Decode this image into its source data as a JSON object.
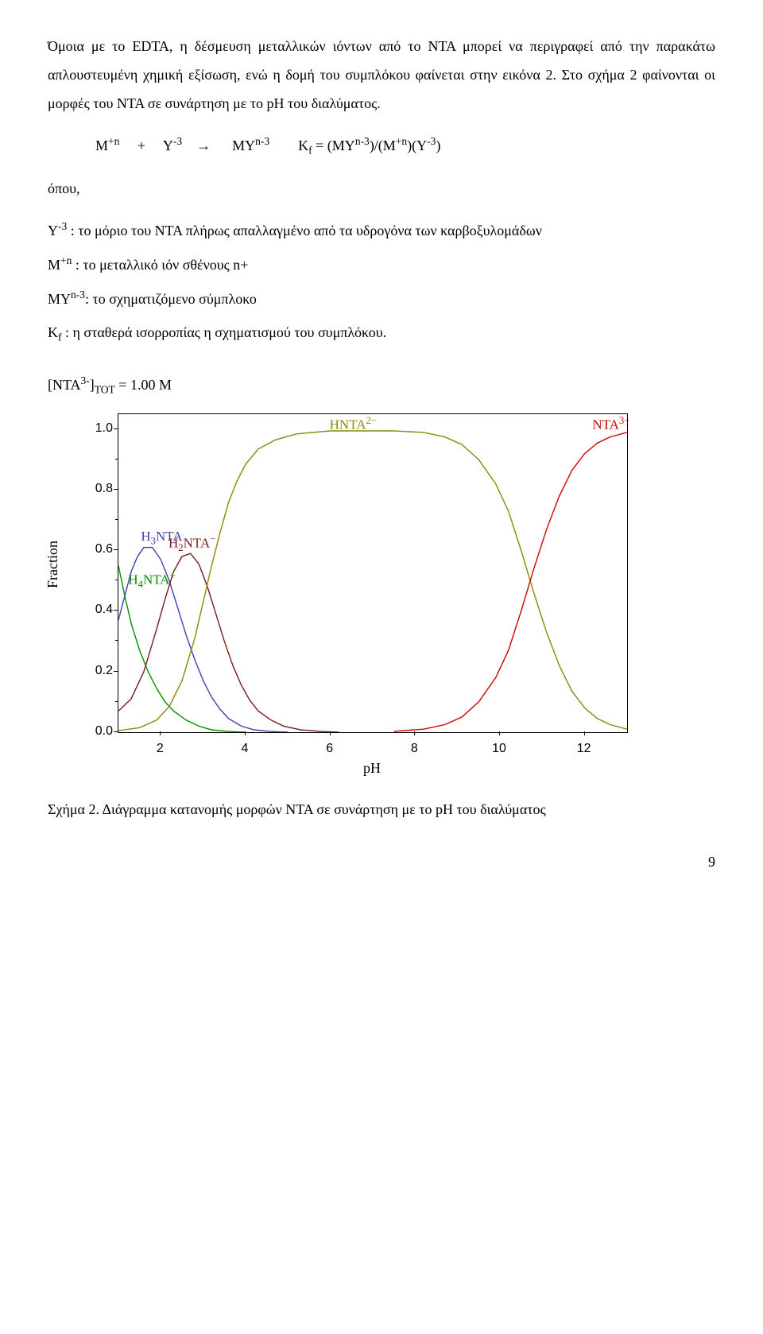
{
  "para1": "Όμοια με το EDTA, η δέσμευση μεταλλικών ιόντων από το NTA μπορεί να περιγραφεί από την παρακάτω απλουστευμένη χημική εξίσωση, ενώ η δομή του συμπλόκου φαίνεται στην εικόνα 2. Στο σχήμα 2 φαίνονται οι μορφές του NTA σε συνάρτηση με το pH του διαλύματος.",
  "eq_where": "όπου,",
  "eq": {
    "M_label": "M",
    "M_sup": "+n",
    "plus": "+",
    "Y_label": "Y",
    "Y_sup": "-3",
    "arrow": "→",
    "MY_label": "MY",
    "MY_sup": "n-3",
    "Kf": "K",
    "Kf_sub": "f",
    "eqsign": " = (MY",
    "rhs_a_sup": "n-3",
    "rhs_b": ")/(M",
    "rhs_b_sup": "+n",
    "rhs_c": ")(Y",
    "rhs_c_sup": "-3",
    "rhs_end": ")"
  },
  "defs": {
    "d1a": "Y",
    "d1sup": "-3",
    "d1b": " : το μόριο του NTA πλήρως απαλλαγμένο από τα υδρογόνα των καρβοξυλομάδων",
    "d2a": "M",
    "d2sup": "+n",
    "d2b": " : το μεταλλικό ιόν σθένους n+",
    "d3a": "MY",
    "d3sup": "n-3",
    "d3b": ": το σχηματιζόμενο σύμπλοκο",
    "d4a": "K",
    "d4sub": "f",
    "d4b": " :  η σταθερά ισορροπίας η σχηματισμού του συμπλόκου."
  },
  "chart": {
    "ntatot_label_a": "[NTA",
    "ntatot_sup": "3-",
    "ntatot_label_b": "]",
    "ntatot_sub": "TOT",
    "ntatot_eq": " =    1.00 M",
    "ylabel": "Fraction",
    "xlabel": "pH",
    "y_ticks": [
      {
        "v": 0.0,
        "label": "0.0"
      },
      {
        "v": 0.2,
        "label": "0.2"
      },
      {
        "v": 0.4,
        "label": "0.4"
      },
      {
        "v": 0.6,
        "label": "0.6"
      },
      {
        "v": 0.8,
        "label": "0.8"
      },
      {
        "v": 1.0,
        "label": "1.0"
      }
    ],
    "x_ticks": [
      {
        "v": 2,
        "label": "2"
      },
      {
        "v": 4,
        "label": "4"
      },
      {
        "v": 6,
        "label": "6"
      },
      {
        "v": 8,
        "label": "8"
      },
      {
        "v": 10,
        "label": "10"
      },
      {
        "v": 12,
        "label": "12"
      }
    ],
    "x_range": [
      1,
      13
    ],
    "y_range": [
      0,
      1.05
    ],
    "series": [
      {
        "name": "H4NTA+",
        "color": "#009000",
        "label_html": "H<sub>4</sub>NTA<sup>+</sup>",
        "label_x": 1.25,
        "label_y": 0.52,
        "points": [
          [
            1.0,
            0.55
          ],
          [
            1.15,
            0.45
          ],
          [
            1.3,
            0.36
          ],
          [
            1.5,
            0.27
          ],
          [
            1.7,
            0.2
          ],
          [
            1.9,
            0.145
          ],
          [
            2.1,
            0.1
          ],
          [
            2.3,
            0.07
          ],
          [
            2.6,
            0.04
          ],
          [
            2.9,
            0.02
          ],
          [
            3.2,
            0.008
          ],
          [
            3.6,
            0.002
          ],
          [
            4.0,
            0.0
          ]
        ]
      },
      {
        "name": "H3NTA",
        "color": "#4040b0",
        "label_html": "H<sub>3</sub>NTA",
        "label_x": 1.55,
        "label_y": 0.66,
        "points": [
          [
            1.0,
            0.37
          ],
          [
            1.15,
            0.45
          ],
          [
            1.3,
            0.53
          ],
          [
            1.45,
            0.58
          ],
          [
            1.6,
            0.61
          ],
          [
            1.8,
            0.61
          ],
          [
            2.0,
            0.57
          ],
          [
            2.2,
            0.5
          ],
          [
            2.4,
            0.41
          ],
          [
            2.6,
            0.32
          ],
          [
            2.8,
            0.24
          ],
          [
            3.0,
            0.17
          ],
          [
            3.2,
            0.115
          ],
          [
            3.4,
            0.075
          ],
          [
            3.6,
            0.045
          ],
          [
            3.9,
            0.02
          ],
          [
            4.2,
            0.008
          ],
          [
            4.6,
            0.002
          ],
          [
            5.0,
            0.0
          ]
        ]
      },
      {
        "name": "H2NTA-",
        "color": "#7a1a1a",
        "label_html": "H<sub>2</sub>NTA<sup>−</sup>",
        "label_x": 2.2,
        "label_y": 0.64,
        "points": [
          [
            1.0,
            0.07
          ],
          [
            1.3,
            0.11
          ],
          [
            1.6,
            0.2
          ],
          [
            1.9,
            0.34
          ],
          [
            2.1,
            0.44
          ],
          [
            2.3,
            0.53
          ],
          [
            2.5,
            0.58
          ],
          [
            2.7,
            0.59
          ],
          [
            2.9,
            0.555
          ],
          [
            3.1,
            0.48
          ],
          [
            3.3,
            0.39
          ],
          [
            3.5,
            0.3
          ],
          [
            3.7,
            0.22
          ],
          [
            3.9,
            0.155
          ],
          [
            4.1,
            0.105
          ],
          [
            4.3,
            0.07
          ],
          [
            4.6,
            0.04
          ],
          [
            4.9,
            0.02
          ],
          [
            5.3,
            0.008
          ],
          [
            5.8,
            0.002
          ],
          [
            6.2,
            0.0
          ]
        ]
      },
      {
        "name": "HNTA2-",
        "color": "#8a8a00",
        "label_html": "HNTA<sup>2−</sup>",
        "label_x": 6.0,
        "label_y": 1.03,
        "points": [
          [
            1.0,
            0.005
          ],
          [
            1.5,
            0.015
          ],
          [
            1.9,
            0.04
          ],
          [
            2.2,
            0.085
          ],
          [
            2.5,
            0.17
          ],
          [
            2.8,
            0.31
          ],
          [
            3.0,
            0.43
          ],
          [
            3.2,
            0.55
          ],
          [
            3.4,
            0.66
          ],
          [
            3.6,
            0.76
          ],
          [
            3.8,
            0.83
          ],
          [
            4.0,
            0.885
          ],
          [
            4.3,
            0.935
          ],
          [
            4.7,
            0.965
          ],
          [
            5.2,
            0.985
          ],
          [
            6.0,
            0.995
          ],
          [
            7.5,
            0.995
          ],
          [
            8.2,
            0.99
          ],
          [
            8.7,
            0.975
          ],
          [
            9.1,
            0.95
          ],
          [
            9.5,
            0.9
          ],
          [
            9.9,
            0.82
          ],
          [
            10.2,
            0.73
          ],
          [
            10.5,
            0.6
          ],
          [
            10.8,
            0.46
          ],
          [
            11.1,
            0.33
          ],
          [
            11.4,
            0.22
          ],
          [
            11.7,
            0.135
          ],
          [
            12.0,
            0.08
          ],
          [
            12.3,
            0.045
          ],
          [
            12.6,
            0.025
          ],
          [
            13.0,
            0.01
          ]
        ]
      },
      {
        "name": "NTA3-",
        "color": "#cc0000",
        "label_html": "NTA<sup>3−</sup>",
        "label_x": 12.2,
        "label_y": 1.03,
        "points": [
          [
            7.5,
            0.003
          ],
          [
            8.2,
            0.01
          ],
          [
            8.7,
            0.025
          ],
          [
            9.1,
            0.05
          ],
          [
            9.5,
            0.1
          ],
          [
            9.9,
            0.18
          ],
          [
            10.2,
            0.27
          ],
          [
            10.5,
            0.4
          ],
          [
            10.8,
            0.54
          ],
          [
            11.1,
            0.67
          ],
          [
            11.4,
            0.78
          ],
          [
            11.7,
            0.865
          ],
          [
            12.0,
            0.92
          ],
          [
            12.3,
            0.955
          ],
          [
            12.6,
            0.975
          ],
          [
            13.0,
            0.99
          ]
        ]
      }
    ]
  },
  "caption": "Σχήμα 2. Διάγραμμα κατανομής μορφών NTA σε συνάρτηση με το pH του διαλύματος",
  "page_number": "9"
}
